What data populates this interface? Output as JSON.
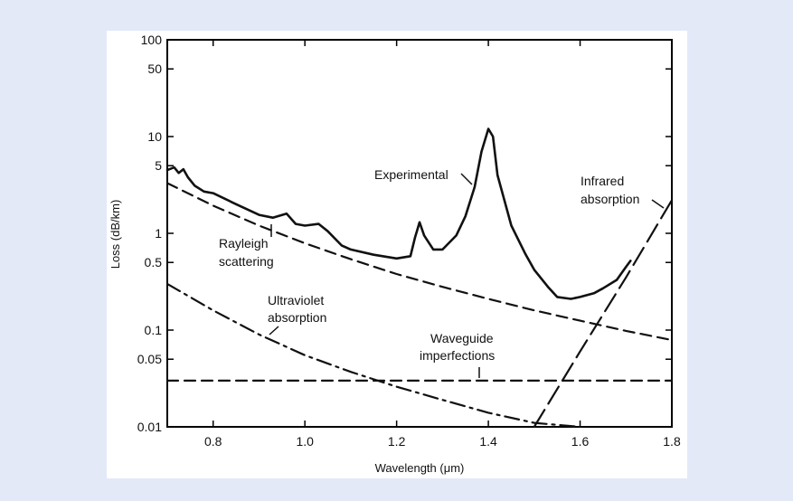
{
  "chart_data": {
    "type": "line",
    "title": "",
    "xlabel": "Wavelength (μm)",
    "ylabel": "Loss (dB/km)",
    "x_ticks": [
      "0.8",
      "1.0",
      "1.2",
      "1.4",
      "1.6",
      "1.8"
    ],
    "y_ticks": [
      "0.01",
      "0.05",
      "0.1",
      "0.5",
      "1",
      "5",
      "10",
      "50",
      "100"
    ],
    "xlim": [
      0.7,
      1.8
    ],
    "ylim": [
      0.01,
      100
    ],
    "yscale": "log",
    "grid": false,
    "legend": "none",
    "series": [
      {
        "name": "Experimental",
        "style": "solid",
        "x": [
          0.7,
          0.715,
          0.725,
          0.735,
          0.745,
          0.76,
          0.78,
          0.8,
          0.85,
          0.9,
          0.93,
          0.96,
          0.98,
          1.0,
          1.03,
          1.05,
          1.08,
          1.1,
          1.15,
          1.2,
          1.23,
          1.24,
          1.25,
          1.26,
          1.28,
          1.3,
          1.33,
          1.35,
          1.37,
          1.385,
          1.4,
          1.41,
          1.42,
          1.45,
          1.48,
          1.5,
          1.53,
          1.55,
          1.58,
          1.6,
          1.63,
          1.65,
          1.68,
          1.7,
          1.71
        ],
        "y": [
          4.5,
          4.8,
          4.2,
          4.6,
          3.8,
          3.1,
          2.7,
          2.6,
          2.0,
          1.55,
          1.45,
          1.6,
          1.25,
          1.2,
          1.25,
          1.05,
          0.75,
          0.68,
          0.6,
          0.55,
          0.58,
          0.9,
          1.3,
          0.95,
          0.68,
          0.68,
          0.95,
          1.5,
          3.0,
          7.0,
          12.0,
          10.0,
          4.0,
          1.2,
          0.62,
          0.42,
          0.28,
          0.22,
          0.21,
          0.22,
          0.24,
          0.27,
          0.33,
          0.45,
          0.52
        ]
      },
      {
        "name": "Rayleigh scattering",
        "style": "dashed",
        "x": [
          0.7,
          0.8,
          0.9,
          1.0,
          1.1,
          1.2,
          1.3,
          1.4,
          1.5,
          1.6,
          1.7,
          1.8
        ],
        "y": [
          3.3,
          1.93,
          1.2,
          0.79,
          0.54,
          0.38,
          0.28,
          0.21,
          0.16,
          0.125,
          0.098,
          0.079
        ]
      },
      {
        "name": "Ultraviolet absorption",
        "style": "dash-dot",
        "x": [
          0.7,
          0.8,
          0.9,
          1.0,
          1.1,
          1.2,
          1.3,
          1.4,
          1.5,
          1.6
        ],
        "y": [
          0.3,
          0.16,
          0.09,
          0.055,
          0.037,
          0.026,
          0.019,
          0.014,
          0.011,
          0.009
        ]
      },
      {
        "name": "Waveguide imperfections",
        "style": "dashed",
        "x": [
          0.7,
          1.8
        ],
        "y": [
          0.03,
          0.03
        ]
      },
      {
        "name": "Infrared absorption",
        "style": "long-dash",
        "x": [
          1.5,
          1.6,
          1.7,
          1.8
        ],
        "y": [
          0.01,
          0.06,
          0.35,
          2.2
        ]
      }
    ],
    "annotations": {
      "experimental": "Experimental",
      "rayleigh_1": "Rayleigh",
      "rayleigh_2": "scattering",
      "uv_1": "Ultraviolet",
      "uv_2": "absorption",
      "waveguide_1": "Waveguide",
      "waveguide_2": "imperfections",
      "ir_1": "Infrared",
      "ir_2": "absorption"
    }
  }
}
